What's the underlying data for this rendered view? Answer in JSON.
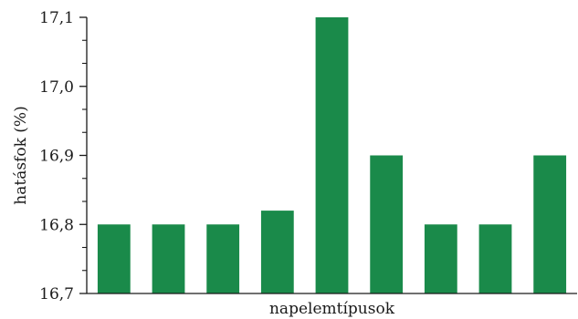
{
  "chart_data": {
    "type": "bar",
    "title": "",
    "xlabel": "napelemtípusok",
    "ylabel": "hatásfok (%)",
    "ylim": [
      16.7,
      17.1
    ],
    "yticks": [
      "16,7",
      "16,8",
      "16,9",
      "17,0",
      "17,1"
    ],
    "minor_ticks": true,
    "grid": false,
    "categories": [
      "",
      "",
      "",
      "",
      "",
      "",
      "",
      "",
      ""
    ],
    "values": [
      16.8,
      16.8,
      16.8,
      16.82,
      17.1,
      16.9,
      16.8,
      16.8,
      16.9
    ],
    "bar_color": "#1a8a4a",
    "axis_color": "#1a1a1a"
  }
}
